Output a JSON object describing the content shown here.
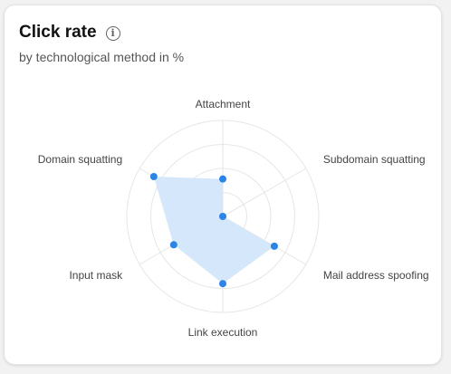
{
  "card": {
    "title": "Click rate",
    "subtitle": "by technological method in %",
    "info_icon": "info-icon"
  },
  "colors": {
    "fill": "#d3e6fb",
    "point": "#2b84e6",
    "grid": "#e6e6e6",
    "label": "#444444"
  },
  "chart_data": {
    "type": "radar",
    "title": "Click rate",
    "subtitle": "by technological method in %",
    "grid_rings": 4,
    "range": [
      0,
      100
    ],
    "categories": [
      "Attachment",
      "Subdomain squatting",
      "Mail address spoofing",
      "Link execution",
      "Input mask",
      "Domain squatting"
    ],
    "values": [
      39,
      0,
      62,
      70,
      59,
      83
    ]
  }
}
